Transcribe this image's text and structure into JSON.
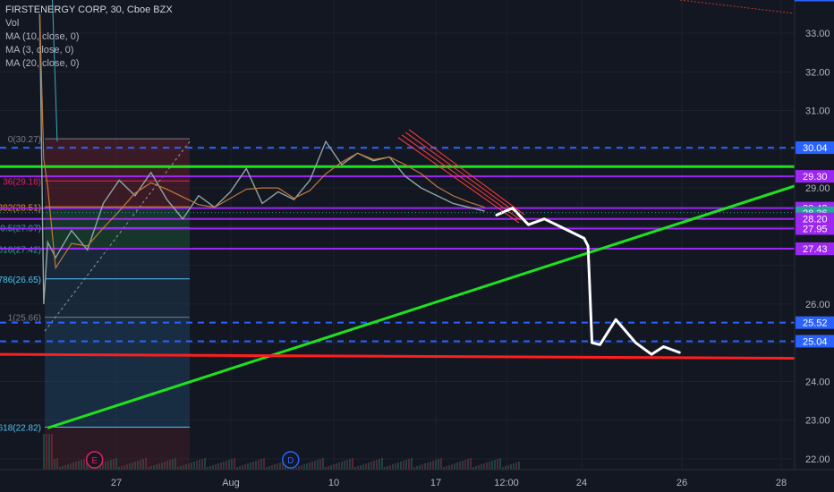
{
  "header": {
    "title": "FIRSTENERGY CORP, 30, Cboe BZX",
    "indicators": [
      "Vol",
      "MA (10, close, 0)",
      "MA (3, close, 0)",
      "MA (20, close, 0)"
    ]
  },
  "chart_data": {
    "type": "line",
    "title": "FIRSTENERGY CORP, 30, Cboe BZX",
    "ylim": [
      21.7,
      33.6
    ],
    "x_tick_labels": [
      "27",
      "Aug",
      "10",
      "17",
      "12:00",
      "24",
      "26",
      "28"
    ],
    "y_tick_labels": [
      "33.00",
      "32.00",
      "31.00",
      "29.00",
      "26.00",
      "24.00",
      "23.00",
      "22.00"
    ],
    "price_labels": [
      {
        "value": "30.04",
        "color": "#2962ff"
      },
      {
        "value": "29.30",
        "color": "#9c27f0"
      },
      {
        "value": "28.48",
        "color": "#9c27f0"
      },
      {
        "value": "28.36",
        "color": "#26a69a"
      },
      {
        "value": "28.20",
        "color": "#9c27f0"
      },
      {
        "value": "27.95",
        "color": "#9c27f0"
      },
      {
        "value": "27.43",
        "color": "#9c27f0"
      },
      {
        "value": "25.52",
        "color": "#2962ff"
      },
      {
        "value": "25.04",
        "color": "#2962ff"
      }
    ],
    "fib_labels": [
      {
        "text": "0(30.27)",
        "value": 30.27,
        "color": "#787b86"
      },
      {
        "text": "36(29.18)",
        "value": 29.18,
        "color": "#e91e63"
      },
      {
        "text": "382(28.51)",
        "value": 28.51,
        "color": "#ff9800"
      },
      {
        "text": "0.5(27.97)",
        "value": 27.97,
        "color": "#26a69a"
      },
      {
        "text": "618(27.42)",
        "value": 27.42,
        "color": "#26a69a"
      },
      {
        "text": "786(26.65)",
        "value": 26.65,
        "color": "#4fc3f7"
      },
      {
        "text": "1(25.66)",
        "value": 25.66,
        "color": "#787b86"
      },
      {
        "text": "618(22.82)",
        "value": 22.82,
        "color": "#4fc3f7"
      }
    ],
    "horizontal_lines": [
      {
        "value": 30.04,
        "color": "#2962ff",
        "style": "dashed"
      },
      {
        "value": 29.55,
        "color": "#1fe11f",
        "style": "solid"
      },
      {
        "value": 29.3,
        "color": "#9c27f0",
        "style": "solid"
      },
      {
        "value": 28.48,
        "color": "#9c27f0",
        "style": "solid"
      },
      {
        "value": 28.2,
        "color": "#9c27f0",
        "style": "solid"
      },
      {
        "value": 27.95,
        "color": "#9c27f0",
        "style": "solid"
      },
      {
        "value": 27.43,
        "color": "#9c27f0",
        "style": "solid"
      },
      {
        "value": 25.52,
        "color": "#2962ff",
        "style": "dashed"
      },
      {
        "value": 25.04,
        "color": "#2962ff",
        "style": "dashed"
      }
    ],
    "trend_lines": [
      {
        "name": "green-uptrend",
        "color": "#1fe11f",
        "points": [
          [
            0.06,
            22.8
          ],
          [
            1.0,
            29.05
          ]
        ]
      },
      {
        "name": "red-support",
        "color": "#ff1e1e",
        "points": [
          [
            0.0,
            24.7
          ],
          [
            1.0,
            24.6
          ]
        ]
      }
    ],
    "price_path": [
      [
        0.05,
        33.5
      ],
      [
        0.055,
        26.0
      ],
      [
        0.06,
        27.6
      ],
      [
        0.07,
        27.2
      ],
      [
        0.09,
        27.9
      ],
      [
        0.11,
        27.4
      ],
      [
        0.13,
        28.6
      ],
      [
        0.15,
        29.2
      ],
      [
        0.17,
        28.8
      ],
      [
        0.19,
        29.4
      ],
      [
        0.21,
        28.7
      ],
      [
        0.23,
        28.2
      ],
      [
        0.25,
        28.8
      ],
      [
        0.27,
        28.5
      ],
      [
        0.29,
        28.9
      ],
      [
        0.31,
        29.5
      ],
      [
        0.33,
        28.6
      ],
      [
        0.35,
        28.9
      ],
      [
        0.37,
        28.7
      ],
      [
        0.39,
        29.2
      ],
      [
        0.41,
        30.2
      ],
      [
        0.43,
        29.6
      ],
      [
        0.45,
        29.9
      ],
      [
        0.47,
        29.7
      ],
      [
        0.49,
        29.8
      ],
      [
        0.51,
        29.3
      ],
      [
        0.53,
        29.0
      ],
      [
        0.55,
        28.8
      ],
      [
        0.57,
        28.6
      ],
      [
        0.59,
        28.5
      ],
      [
        0.61,
        28.4
      ]
    ],
    "projection_path": [
      [
        0.625,
        28.3
      ],
      [
        0.645,
        28.48
      ],
      [
        0.665,
        28.05
      ],
      [
        0.685,
        28.2
      ],
      [
        0.71,
        27.95
      ],
      [
        0.735,
        27.7
      ],
      [
        0.74,
        27.5
      ],
      [
        0.745,
        25.0
      ],
      [
        0.755,
        24.95
      ],
      [
        0.775,
        25.6
      ],
      [
        0.8,
        25.0
      ],
      [
        0.82,
        24.7
      ],
      [
        0.835,
        24.9
      ],
      [
        0.855,
        24.75
      ]
    ],
    "event_markers": [
      {
        "label": "E",
        "x": 0.11,
        "color": "#e91e63"
      },
      {
        "label": "D",
        "x": 0.35,
        "color": "#2962ff"
      }
    ]
  }
}
